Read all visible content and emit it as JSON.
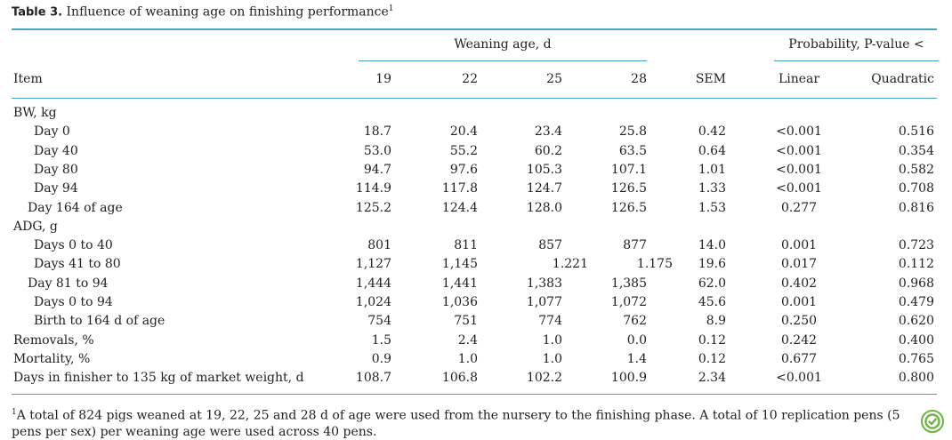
{
  "caption": {
    "label": "Table 3.",
    "text": "Influence of weaning age on finishing performance",
    "sup": "1"
  },
  "header": {
    "group_weaning": "Weaning age, d",
    "group_probability": "Probability, P-value <",
    "item": "Item",
    "cols": [
      "19",
      "22",
      "25",
      "28",
      "SEM",
      "Linear",
      "Quadratic"
    ]
  },
  "rows": [
    {
      "label": "BW, kg",
      "indent": 0,
      "values": [
        "",
        "",
        "",
        "",
        "",
        "",
        ""
      ]
    },
    {
      "label": "Day 0",
      "indent": 2,
      "values": [
        "18.7",
        "20.4",
        "23.4",
        "25.8",
        "0.42",
        "<0.001",
        "0.516"
      ]
    },
    {
      "label": "Day 40",
      "indent": 2,
      "values": [
        "53.0",
        "55.2",
        "60.2",
        "63.5",
        "0.64",
        "<0.001",
        "0.354"
      ]
    },
    {
      "label": "Day 80",
      "indent": 2,
      "values": [
        "94.7",
        "97.6",
        "105.3",
        "107.1",
        "1.01",
        "<0.001",
        "0.582"
      ]
    },
    {
      "label": "Day 94",
      "indent": 2,
      "values": [
        "114.9",
        "117.8",
        "124.7",
        "126.5",
        "1.33",
        "<0.001",
        "0.708"
      ]
    },
    {
      "label": "Day 164 of age",
      "indent": 1,
      "values": [
        "125.2",
        "124.4",
        "128.0",
        "126.5",
        "1.53",
        "0.277",
        "0.816"
      ]
    },
    {
      "label": "ADG, g",
      "indent": 0,
      "values": [
        "",
        "",
        "",
        "",
        "",
        "",
        ""
      ]
    },
    {
      "label": "Days 0 to 40",
      "indent": 2,
      "values": [
        "801",
        "811",
        "857",
        "877",
        "14.0",
        "0.001",
        "0.723"
      ]
    },
    {
      "label": "Days 41 to 80",
      "indent": 2,
      "values": [
        "1,127",
        "1,145",
        "1.221",
        "1.175",
        "19.6",
        "0.017",
        "0.112"
      ]
    },
    {
      "label": "Day 81 to 94",
      "indent": 1,
      "values": [
        "1,444",
        "1,441",
        "1,383",
        "1,385",
        "62.0",
        "0.402",
        "0.968"
      ]
    },
    {
      "label": "Days 0 to 94",
      "indent": 2,
      "values": [
        "1,024",
        "1,036",
        "1,077",
        "1,072",
        "45.6",
        "0.001",
        "0.479"
      ]
    },
    {
      "label": "Birth to 164 d of age",
      "indent": 2,
      "values": [
        "754",
        "751",
        "774",
        "762",
        "8.9",
        "0.250",
        "0.620"
      ]
    },
    {
      "label": "Removals, %",
      "indent": 0,
      "values": [
        "1.5",
        "2.4",
        "1.0",
        "0.0",
        "0.12",
        "0.242",
        "0.400"
      ]
    },
    {
      "label": "Mortality, %",
      "indent": 0,
      "values": [
        "0.9",
        "1.0",
        "1.0",
        "1.4",
        "0.12",
        "0.677",
        "0.765"
      ]
    },
    {
      "label": "Days in finisher to 135 kg of market weight, d",
      "indent": 0,
      "values": [
        "108.7",
        "106.8",
        "102.2",
        "100.9",
        "2.34",
        "<0.001",
        "0.800"
      ]
    }
  ],
  "footnote": {
    "sup": "1",
    "text": "A total of 824 pigs weaned at 19, 22, 25 and 28 d of age were used from the nursery to the finishing phase. A total of 10 replication pens (5 pens per sex) per weaning age were used across 40 pens."
  },
  "colors": {
    "rule": "#4aa3c6",
    "badge": "#6cb33f"
  },
  "icons": {
    "badge": "open-access-badge-icon"
  }
}
